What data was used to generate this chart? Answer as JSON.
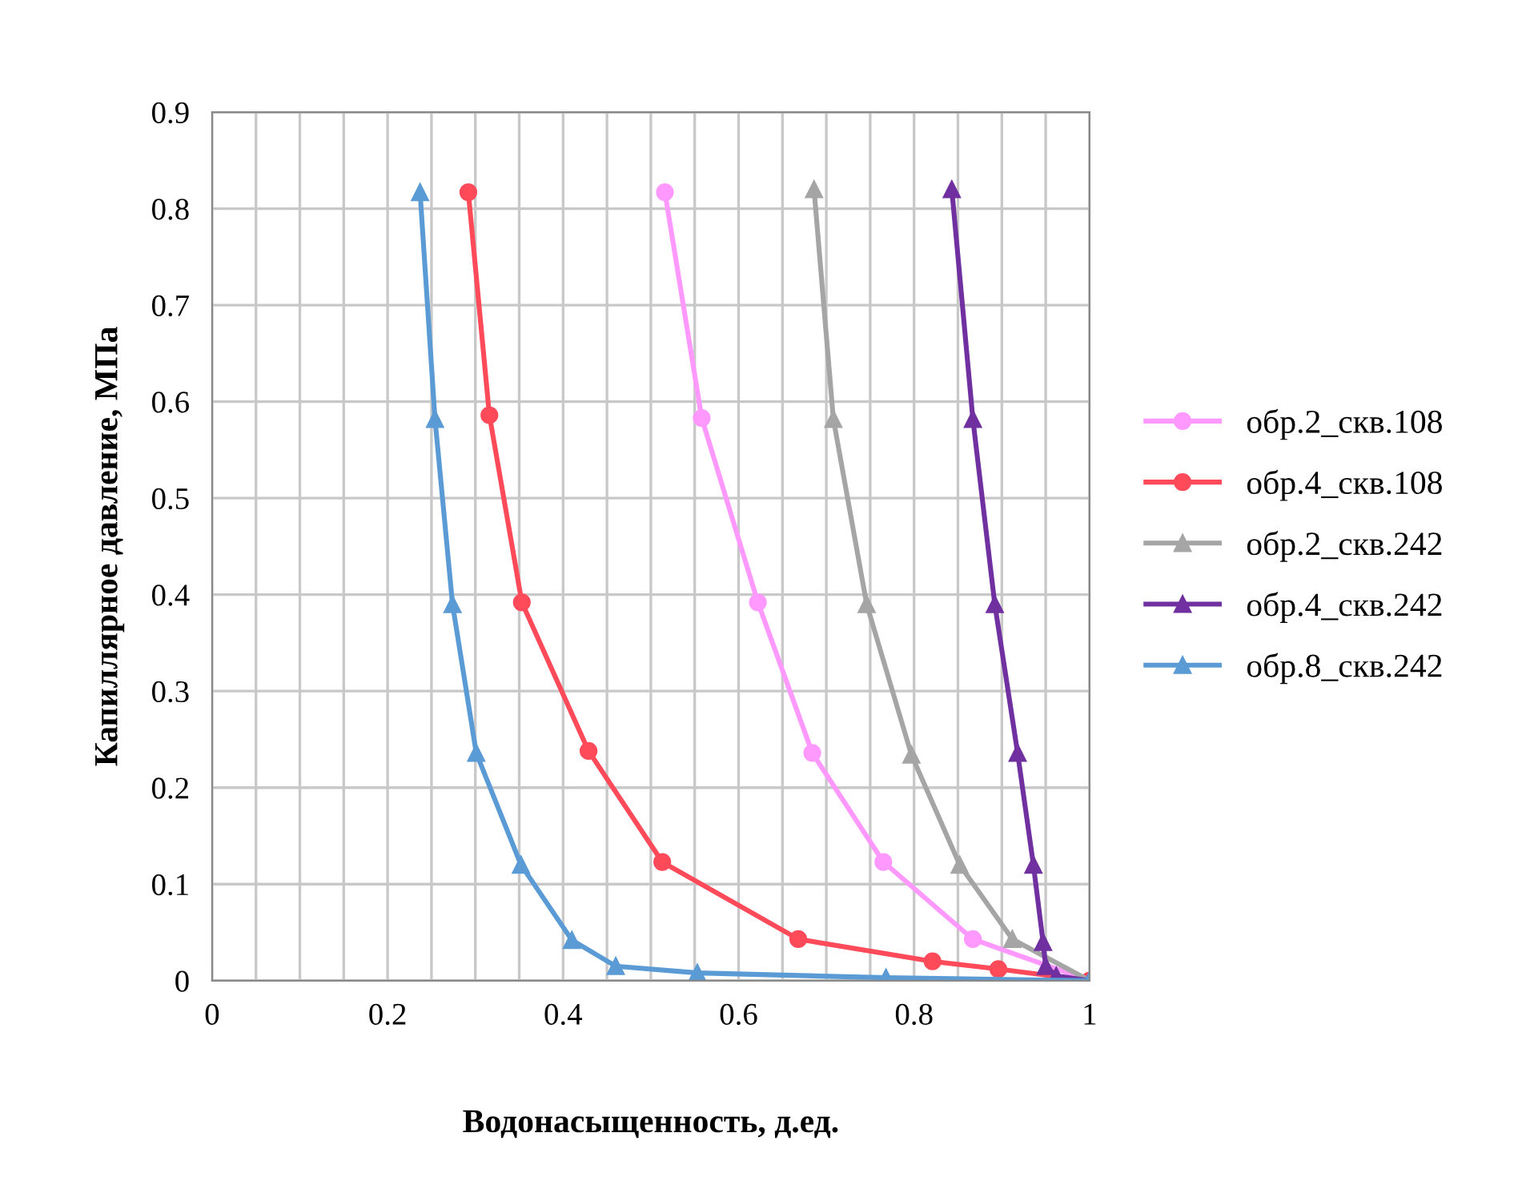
{
  "chart_data": {
    "type": "line",
    "xlabel": "Водонасыщенность, д.ед.",
    "ylabel": "Капиллярное давление, МПа",
    "xlim": [
      0,
      1
    ],
    "ylim": [
      0,
      0.9
    ],
    "xticks": [
      0,
      {
        "value": 0.05,
        "label": null
      },
      {
        "value": 0.1,
        "label": null
      },
      {
        "value": 0.15,
        "label": null
      },
      0.2,
      {
        "value": 0.25,
        "label": null
      },
      {
        "value": 0.3,
        "label": null
      },
      {
        "value": 0.35,
        "label": null
      },
      0.4,
      {
        "value": 0.45,
        "label": null
      },
      {
        "value": 0.5,
        "label": null
      },
      {
        "value": 0.55,
        "label": null
      },
      0.6,
      {
        "value": 0.65,
        "label": null
      },
      {
        "value": 0.7,
        "label": null
      },
      {
        "value": 0.75,
        "label": null
      },
      0.8,
      {
        "value": 0.85,
        "label": null
      },
      {
        "value": 0.9,
        "label": null
      },
      {
        "value": 0.95,
        "label": null
      },
      1
    ],
    "yticks": [
      0,
      0.1,
      0.2,
      0.3,
      0.4,
      0.5,
      0.6,
      0.7,
      0.8,
      0.9
    ],
    "grid": true,
    "legend": "right",
    "line_style": "solid",
    "series": [
      {
        "name": "обр.2_скв.108",
        "color": "#ff99ff",
        "marker": "circle",
        "x": [
          0.516,
          0.558,
          0.622,
          0.684,
          0.765,
          0.867,
          1
        ],
        "values": [
          0.817,
          0.583,
          0.392,
          0.236,
          0.123,
          0.043,
          0
        ]
      },
      {
        "name": "обр.4_скв.108",
        "color": "#ff4a5a",
        "marker": "circle",
        "x": [
          0.292,
          0.316,
          0.353,
          0.429,
          0.513,
          0.668,
          0.821,
          0.896,
          1
        ],
        "values": [
          0.817,
          0.586,
          0.392,
          0.238,
          0.123,
          0.043,
          0.02,
          0.012,
          0
        ]
      },
      {
        "name": "обр.2_скв.242",
        "color": "#a5a5a5",
        "marker": "triangle",
        "x": [
          0.686,
          0.708,
          0.746,
          0.797,
          0.852,
          0.912,
          1
        ],
        "values": [
          0.82,
          0.582,
          0.39,
          0.234,
          0.12,
          0.043,
          0
        ]
      },
      {
        "name": "обр.4_скв.242",
        "color": "#7030a0",
        "marker": "triangle",
        "x": [
          0.843,
          0.867,
          0.892,
          0.918,
          0.936,
          0.947,
          0.95,
          0.962,
          1
        ],
        "values": [
          0.82,
          0.582,
          0.39,
          0.236,
          0.12,
          0.04,
          0.015,
          0.005,
          0
        ]
      },
      {
        "name": "обр.8_скв.242",
        "color": "#5b9bd5",
        "marker": "triangle",
        "x": [
          0.237,
          0.254,
          0.274,
          0.301,
          0.352,
          0.41,
          0.46,
          0.553,
          0.768,
          1
        ],
        "values": [
          0.817,
          0.582,
          0.39,
          0.236,
          0.12,
          0.042,
          0.015,
          0.008,
          0.003,
          0
        ]
      }
    ]
  }
}
